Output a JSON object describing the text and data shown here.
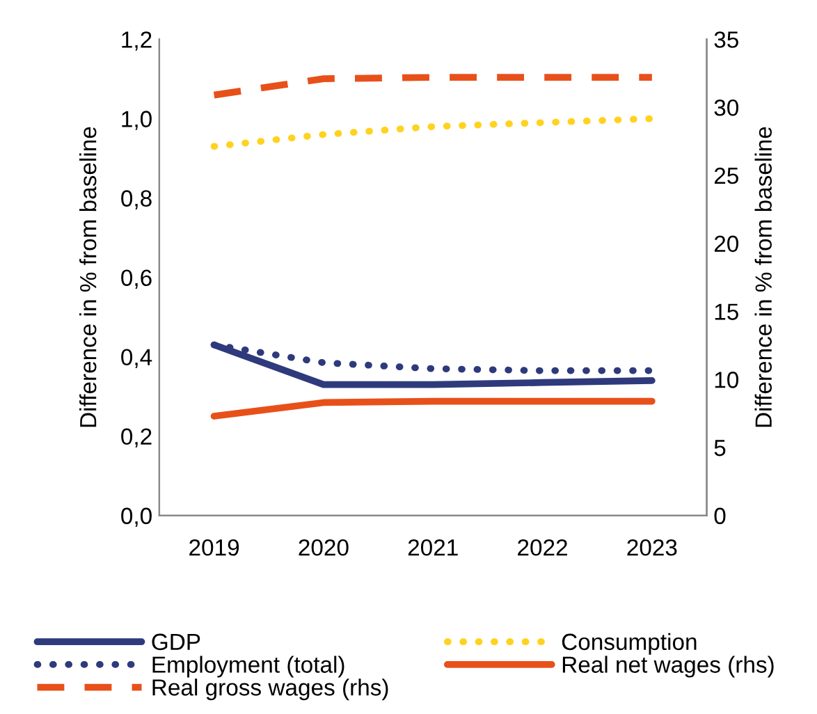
{
  "chart_data": {
    "type": "line",
    "ylabel": "Difference in % from baseline",
    "y2label": "Difference in % from baseline",
    "categories": [
      "2019",
      "2020",
      "2021",
      "2022",
      "2023"
    ],
    "ylim": [
      0,
      1.2
    ],
    "yticks": [
      {
        "value": 0,
        "label": "0,0"
      },
      {
        "value": 0.2,
        "label": "0,2"
      },
      {
        "value": 0.4,
        "label": "0,4"
      },
      {
        "value": 0.6,
        "label": "0,6"
      },
      {
        "value": 0.8,
        "label": "0,8"
      },
      {
        "value": 1.0,
        "label": "1,0"
      },
      {
        "value": 1.2,
        "label": "1,2"
      }
    ],
    "y2lim": [
      0,
      35
    ],
    "y2ticks": [
      0,
      5,
      10,
      15,
      20,
      25,
      30,
      35
    ],
    "grid": false,
    "legend": "bottom",
    "marker": "none",
    "series": [
      {
        "name": "GDP",
        "color": "#2e3a7c",
        "values": [
          0.43,
          0.33,
          0.33,
          0.335,
          0.34
        ],
        "line_style": "solid"
      },
      {
        "name": "Employment (total)",
        "color": "#2e3a7c",
        "values": [
          0.43,
          0.385,
          0.37,
          0.365,
          0.365
        ],
        "line_style": "dotted"
      },
      {
        "name": "Real gross wages (rhs)",
        "color": "#e8501a",
        "values": [
          30.9,
          32.1,
          32.2,
          32.2,
          32.2
        ],
        "line_style": "dashed",
        "axis": "y2"
      },
      {
        "name": "Consumption",
        "color": "#ffd21f",
        "values": [
          0.93,
          0.96,
          0.98,
          0.99,
          1.0
        ],
        "line_style": "dotted"
      },
      {
        "name": "Real net wages (rhs)",
        "color": "#e8501a",
        "values": [
          7.3,
          8.3,
          8.4,
          8.4,
          8.4
        ],
        "line_style": "solid",
        "axis": "y2"
      }
    ]
  }
}
